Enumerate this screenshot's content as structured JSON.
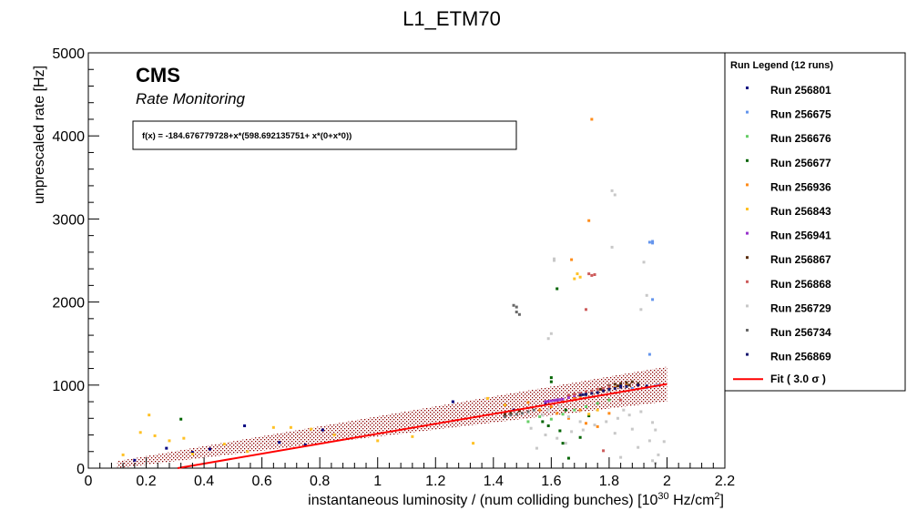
{
  "chart_data": {
    "type": "scatter",
    "title": "L1_ETM70",
    "xlabel": "instantaneous luminosity / (num colliding bunches) [10",
    "xlabel_sup1": "30",
    "xlabel_mid": " Hz/cm",
    "xlabel_sup2": "2",
    "xlabel_end": "]",
    "ylabel": "unprescaled rate [Hz]",
    "xlim": [
      0,
      2.2
    ],
    "ylim": [
      0,
      5000
    ],
    "x_ticks": [
      "0",
      "0.2",
      "0.4",
      "0.6",
      "0.8",
      "1",
      "1.2",
      "1.4",
      "1.6",
      "1.8",
      "2",
      "2.2"
    ],
    "y_ticks": [
      "0",
      "1000",
      "2000",
      "3000",
      "4000",
      "5000"
    ],
    "x_tick_values": [
      0,
      0.2,
      0.4,
      0.6,
      0.8,
      1.0,
      1.2,
      1.4,
      1.6,
      1.8,
      2.0,
      2.2
    ],
    "y_tick_values": [
      0,
      1000,
      2000,
      3000,
      4000,
      5000
    ],
    "annotations": {
      "cms": "CMS",
      "subtitle": "Rate Monitoring",
      "formula": "f(x) = -184.676779728+x*(598.692135751+ x*(0+x*0))"
    },
    "fit": {
      "intercept": -184.676779728,
      "slope": 598.692135751,
      "x_range": [
        0.1,
        2.0
      ],
      "band_sigma": 3.0,
      "band_halfwidth": 210,
      "color": "#ff0000",
      "band_color": "#8b0000"
    },
    "legend": {
      "title": "Run Legend (12 runs)",
      "fit_label": "Fit ( 3.0  σ )",
      "placement": "right"
    },
    "series": [
      {
        "name": "Run 256801",
        "color": "#000080",
        "points": [
          [
            0.16,
            95
          ],
          [
            0.27,
            240
          ],
          [
            0.36,
            190
          ],
          [
            0.42,
            230
          ],
          [
            0.54,
            510
          ],
          [
            0.66,
            310
          ],
          [
            0.75,
            280
          ],
          [
            0.81,
            460
          ],
          [
            1.26,
            800
          ],
          [
            1.47,
            700
          ],
          [
            1.58,
            770
          ],
          [
            1.62,
            820
          ],
          [
            1.7,
            880
          ],
          [
            1.78,
            940
          ],
          [
            1.84,
            990
          ]
        ]
      },
      {
        "name": "Run 256675",
        "color": "#6495ed",
        "points": [
          [
            1.94,
            2720
          ],
          [
            1.95,
            2730
          ],
          [
            1.95,
            2710
          ],
          [
            1.94,
            1370
          ],
          [
            1.95,
            2030
          ],
          [
            1.97,
            1000
          ],
          [
            1.96,
            990
          ],
          [
            1.93,
            970
          ],
          [
            1.88,
            960
          ]
        ]
      },
      {
        "name": "Run 256676",
        "color": "#66cd66",
        "points": [
          [
            1.52,
            560
          ],
          [
            1.56,
            620
          ],
          [
            1.6,
            590
          ],
          [
            1.64,
            650
          ],
          [
            1.68,
            700
          ],
          [
            1.72,
            740
          ],
          [
            1.76,
            780
          ],
          [
            1.8,
            820
          ]
        ]
      },
      {
        "name": "Run 256677",
        "color": "#006400",
        "points": [
          [
            0.32,
            590
          ],
          [
            1.62,
            2160
          ],
          [
            1.6,
            1090
          ],
          [
            1.6,
            1040
          ],
          [
            1.57,
            560
          ],
          [
            1.63,
            450
          ],
          [
            1.64,
            300
          ],
          [
            1.66,
            120
          ],
          [
            1.59,
            510
          ],
          [
            1.7,
            370
          ],
          [
            1.73,
            630
          ],
          [
            1.65,
            700
          ]
        ]
      },
      {
        "name": "Run 256936",
        "color": "#ff8c1a",
        "points": [
          [
            1.74,
            4200
          ],
          [
            1.73,
            2980
          ],
          [
            1.67,
            2510
          ],
          [
            1.52,
            790
          ],
          [
            1.56,
            700
          ],
          [
            1.6,
            740
          ],
          [
            1.64,
            800
          ],
          [
            1.68,
            840
          ],
          [
            1.7,
            860
          ],
          [
            1.74,
            900
          ],
          [
            1.78,
            930
          ],
          [
            1.82,
            970
          ],
          [
            1.86,
            1000
          ],
          [
            1.62,
            660
          ],
          [
            1.66,
            600
          ],
          [
            1.72,
            540
          ],
          [
            1.76,
            500
          ],
          [
            1.7,
            700
          ],
          [
            1.8,
            660
          ]
        ]
      },
      {
        "name": "Run 256843",
        "color": "#ffc125",
        "points": [
          [
            0.12,
            160
          ],
          [
            0.18,
            430
          ],
          [
            0.21,
            640
          ],
          [
            0.23,
            390
          ],
          [
            0.28,
            330
          ],
          [
            0.33,
            360
          ],
          [
            0.36,
            170
          ],
          [
            0.47,
            290
          ],
          [
            0.55,
            200
          ],
          [
            0.64,
            490
          ],
          [
            0.7,
            490
          ],
          [
            0.77,
            470
          ],
          [
            0.85,
            400
          ],
          [
            1.0,
            330
          ],
          [
            1.12,
            380
          ],
          [
            1.33,
            300
          ],
          [
            1.38,
            840
          ],
          [
            1.44,
            760
          ],
          [
            1.69,
            2340
          ],
          [
            1.7,
            2300
          ],
          [
            1.68,
            2280
          ],
          [
            1.73,
            650
          ],
          [
            1.76,
            700
          ]
        ]
      },
      {
        "name": "Run 256941",
        "color": "#9932cc",
        "points": [
          [
            1.58,
            800
          ],
          [
            1.59,
            805
          ],
          [
            1.6,
            810
          ],
          [
            1.61,
            815
          ],
          [
            1.62,
            820
          ],
          [
            1.63,
            825
          ],
          [
            1.64,
            830
          ],
          [
            1.66,
            850
          ],
          [
            1.68,
            870
          ],
          [
            1.7,
            890
          ],
          [
            1.72,
            900
          ]
        ]
      },
      {
        "name": "Run 256867",
        "color": "#5a2d0c",
        "points": [
          [
            1.44,
            650
          ],
          [
            1.46,
            660
          ],
          [
            1.49,
            690
          ],
          [
            1.8,
            990
          ],
          [
            1.82,
            1010
          ],
          [
            1.84,
            1020
          ],
          [
            1.86,
            1030
          ],
          [
            1.88,
            1040
          ],
          [
            1.9,
            1020
          ],
          [
            1.87,
            1000
          ],
          [
            1.83,
            990
          ],
          [
            1.77,
            950
          ]
        ]
      },
      {
        "name": "Run 256868",
        "color": "#cd5c5c",
        "points": [
          [
            1.74,
            2320
          ],
          [
            1.73,
            2340
          ],
          [
            1.75,
            2330
          ],
          [
            1.72,
            1910
          ],
          [
            1.66,
            880
          ],
          [
            1.7,
            900
          ],
          [
            1.72,
            920
          ],
          [
            1.74,
            930
          ],
          [
            1.76,
            950
          ],
          [
            1.78,
            960
          ],
          [
            1.8,
            980
          ],
          [
            1.68,
            890
          ],
          [
            1.84,
            820
          ],
          [
            1.78,
            210
          ]
        ]
      },
      {
        "name": "Run 256729",
        "color": "#c8c8c8",
        "points": [
          [
            1.81,
            3340
          ],
          [
            1.82,
            3290
          ],
          [
            1.81,
            2660
          ],
          [
            1.92,
            2480
          ],
          [
            1.93,
            2080
          ],
          [
            1.91,
            1910
          ],
          [
            1.61,
            2500
          ],
          [
            1.61,
            2520
          ],
          [
            1.6,
            1620
          ],
          [
            1.59,
            1560
          ],
          [
            1.57,
            640
          ],
          [
            1.53,
            480
          ],
          [
            1.58,
            400
          ],
          [
            1.62,
            360
          ],
          [
            1.65,
            300
          ],
          [
            1.55,
            240
          ],
          [
            1.67,
            440
          ],
          [
            1.71,
            460
          ],
          [
            1.75,
            520
          ],
          [
            1.79,
            560
          ],
          [
            1.83,
            600
          ],
          [
            1.87,
            640
          ],
          [
            1.91,
            680
          ],
          [
            1.95,
            550
          ],
          [
            1.96,
            460
          ],
          [
            1.94,
            330
          ],
          [
            1.97,
            160
          ],
          [
            1.96,
            60
          ],
          [
            1.95,
            90
          ],
          [
            1.99,
            320
          ],
          [
            1.85,
            700
          ],
          [
            1.88,
            470
          ],
          [
            1.9,
            250
          ],
          [
            1.84,
            130
          ],
          [
            1.82,
            420
          ],
          [
            1.7,
            560
          ],
          [
            1.66,
            620
          ],
          [
            1.63,
            740
          ],
          [
            1.59,
            700
          ]
        ]
      },
      {
        "name": "Run 256734",
        "color": "#696969",
        "points": [
          [
            1.47,
            1960
          ],
          [
            1.48,
            1940
          ],
          [
            1.48,
            1880
          ],
          [
            1.49,
            1850
          ],
          [
            1.44,
            620
          ],
          [
            1.46,
            640
          ],
          [
            1.48,
            650
          ],
          [
            1.5,
            660
          ],
          [
            1.52,
            680
          ],
          [
            1.54,
            700
          ],
          [
            1.72,
            880
          ],
          [
            1.76,
            910
          ],
          [
            1.8,
            940
          ],
          [
            1.86,
            980
          ]
        ]
      },
      {
        "name": "Run 256869",
        "color": "#191970",
        "points": [
          [
            1.7,
            880
          ],
          [
            1.71,
            885
          ],
          [
            1.72,
            890
          ],
          [
            1.74,
            900
          ],
          [
            1.76,
            910
          ],
          [
            1.78,
            930
          ],
          [
            1.8,
            950
          ],
          [
            1.82,
            960
          ],
          [
            1.84,
            975
          ],
          [
            1.86,
            985
          ],
          [
            1.9,
            1000
          ],
          [
            1.93,
            990
          ]
        ]
      }
    ]
  }
}
